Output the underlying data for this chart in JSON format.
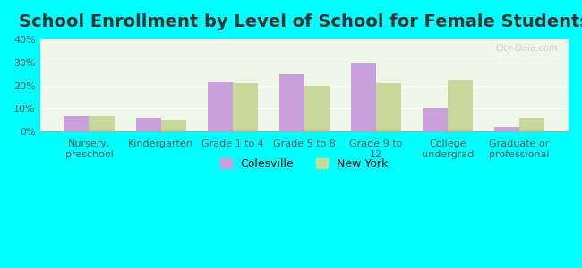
{
  "title": "School Enrollment by Level of School for Female Students",
  "categories": [
    "Nursery,\npreschool",
    "Kindergarten",
    "Grade 1 to 4",
    "Grade 5 to 8",
    "Grade 9 to\n12",
    "College\nundergrad",
    "Graduate or\nprofessional"
  ],
  "colesville": [
    6.5,
    6.0,
    21.5,
    25.0,
    29.5,
    10.0,
    2.0
  ],
  "new_york": [
    6.5,
    5.0,
    21.0,
    20.0,
    21.0,
    22.0,
    6.0
  ],
  "colesville_color": "#c9a0dc",
  "new_york_color": "#c8d89a",
  "background_color": "#00ffff",
  "ylim": [
    0,
    40
  ],
  "yticks": [
    0,
    10,
    20,
    30,
    40
  ],
  "bar_width": 0.35,
  "legend_colesville": "Colesville",
  "legend_new_york": "New York",
  "title_fontsize": 14,
  "tick_fontsize": 8,
  "legend_fontsize": 9
}
